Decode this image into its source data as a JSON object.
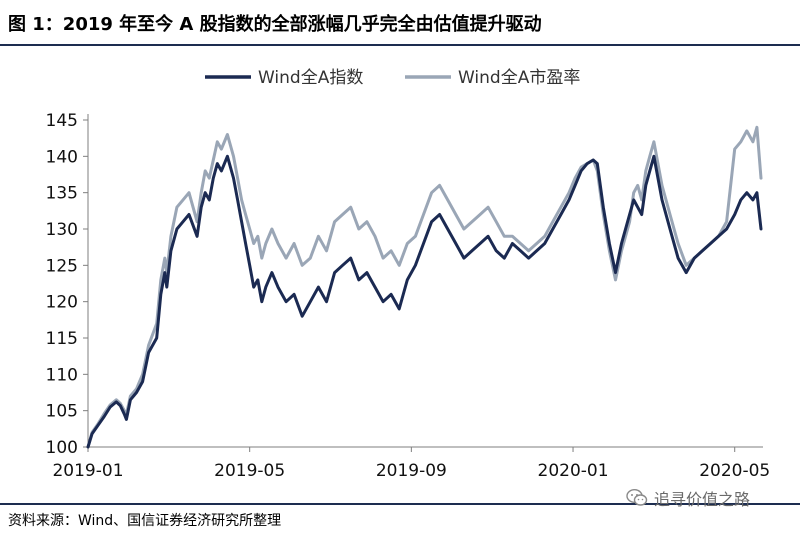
{
  "header": {
    "title": "图 1：2019 年至今 A 股指数的全部涨幅几乎完全由估值提升驱动"
  },
  "footer": {
    "source": "资料来源：Wind、国信证券经济研究所整理",
    "watermark": "追寻价值之路"
  },
  "colors": {
    "index_series": "#1b2a52",
    "pe_series": "#9aa6b6",
    "axis": "#7f7f7f",
    "rule": "#1d2d50"
  },
  "chart_data": {
    "type": "line",
    "title": "",
    "xlabel": "",
    "ylabel": "",
    "ylim": [
      100,
      145
    ],
    "yticks": [
      100,
      105,
      110,
      115,
      120,
      125,
      130,
      135,
      140,
      145
    ],
    "xlim": [
      0,
      16.7
    ],
    "xtick_labels": [
      "2019-01",
      "2019-05",
      "2019-09",
      "2020-01",
      "2020-05"
    ],
    "xtick_positions": [
      0,
      4,
      8,
      12,
      16
    ],
    "legend_position": "top-center",
    "series": [
      {
        "name": "Wind全A指数",
        "color": "#1b2a52",
        "x": [
          0,
          0.1,
          0.25,
          0.4,
          0.55,
          0.7,
          0.8,
          0.9,
          0.95,
          1.05,
          1.2,
          1.35,
          1.5,
          1.7,
          1.8,
          1.9,
          1.95,
          2.05,
          2.2,
          2.35,
          2.5,
          2.7,
          2.8,
          2.9,
          3.0,
          3.1,
          3.2,
          3.3,
          3.45,
          3.6,
          3.7,
          3.8,
          3.9,
          4.0,
          4.1,
          4.2,
          4.3,
          4.4,
          4.55,
          4.7,
          4.9,
          5.1,
          5.3,
          5.5,
          5.7,
          5.9,
          6.1,
          6.3,
          6.5,
          6.7,
          6.9,
          7.1,
          7.3,
          7.5,
          7.7,
          7.9,
          8.1,
          8.3,
          8.5,
          8.7,
          8.9,
          9.1,
          9.3,
          9.5,
          9.7,
          9.9,
          10.1,
          10.3,
          10.5,
          10.7,
          10.9,
          11.1,
          11.3,
          11.5,
          11.7,
          11.9,
          12.05,
          12.2,
          12.35,
          12.5,
          12.6,
          12.75,
          12.9,
          13.05,
          13.2,
          13.4,
          13.5,
          13.6,
          13.7,
          13.8,
          13.9,
          14.0,
          14.2,
          14.4,
          14.6,
          14.8,
          15.0,
          15.2,
          15.4,
          15.6,
          15.8,
          16.0,
          16.15,
          16.3,
          16.45,
          16.55,
          16.65
        ],
        "values": [
          100,
          101.8,
          103,
          104.2,
          105.5,
          106.2,
          105.7,
          104.5,
          103.8,
          106.5,
          107.5,
          109,
          113,
          115,
          121,
          124,
          122,
          127,
          130,
          131,
          132,
          129,
          133,
          135,
          134,
          137,
          139,
          138,
          140,
          137,
          134,
          131,
          128,
          125,
          122,
          123,
          120,
          122,
          124,
          122,
          120,
          121,
          118,
          120,
          122,
          120,
          124,
          125,
          126,
          123,
          124,
          122,
          120,
          121,
          119,
          123,
          125,
          128,
          131,
          132,
          130,
          128,
          126,
          127,
          128,
          129,
          127,
          126,
          128,
          127,
          126,
          127,
          128,
          130,
          132,
          134,
          136,
          138,
          139,
          139.5,
          139,
          133,
          128,
          124,
          128,
          132,
          134,
          133,
          132,
          136,
          138,
          140,
          134,
          130,
          126,
          124,
          126,
          127,
          128,
          129,
          130,
          132,
          134,
          135,
          134,
          135,
          130
        ]
      },
      {
        "name": "Wind全A市盈率",
        "color": "#9aa6b6",
        "x": [
          0,
          0.1,
          0.25,
          0.4,
          0.55,
          0.7,
          0.8,
          0.9,
          0.95,
          1.05,
          1.2,
          1.35,
          1.5,
          1.7,
          1.8,
          1.9,
          1.95,
          2.05,
          2.2,
          2.35,
          2.5,
          2.7,
          2.8,
          2.9,
          3.0,
          3.1,
          3.2,
          3.3,
          3.45,
          3.6,
          3.7,
          3.8,
          3.9,
          4.0,
          4.1,
          4.2,
          4.3,
          4.4,
          4.55,
          4.7,
          4.9,
          5.1,
          5.3,
          5.5,
          5.7,
          5.9,
          6.1,
          6.3,
          6.5,
          6.7,
          6.9,
          7.1,
          7.3,
          7.5,
          7.7,
          7.9,
          8.1,
          8.3,
          8.5,
          8.7,
          8.9,
          9.1,
          9.3,
          9.5,
          9.7,
          9.9,
          10.1,
          10.3,
          10.5,
          10.7,
          10.9,
          11.1,
          11.3,
          11.5,
          11.7,
          11.9,
          12.05,
          12.2,
          12.35,
          12.5,
          12.6,
          12.75,
          12.9,
          13.05,
          13.2,
          13.4,
          13.5,
          13.6,
          13.7,
          13.8,
          13.9,
          14.0,
          14.2,
          14.4,
          14.6,
          14.8,
          15.0,
          15.2,
          15.4,
          15.6,
          15.8,
          16.0,
          16.15,
          16.3,
          16.45,
          16.55,
          16.65
        ],
        "values": [
          100,
          102,
          103.2,
          104.6,
          105.8,
          106.5,
          106,
          105,
          104.5,
          107,
          108,
          110,
          114,
          117,
          123,
          126,
          124,
          129,
          133,
          134,
          135,
          131,
          135,
          138,
          137,
          139.5,
          142,
          141,
          143,
          140,
          137,
          134,
          132,
          130,
          128,
          129,
          126,
          128,
          130,
          128,
          126,
          128,
          125,
          126,
          129,
          127,
          131,
          132,
          133,
          130,
          131,
          129,
          126,
          127,
          125,
          128,
          129,
          132,
          135,
          136,
          134,
          132,
          130,
          131,
          132,
          133,
          131,
          129,
          129,
          128,
          127,
          128,
          129,
          131,
          133,
          135,
          137,
          138.5,
          139,
          139.5,
          138,
          132,
          127,
          123,
          127,
          131,
          135,
          136,
          134,
          138,
          140,
          142,
          136,
          132,
          128,
          125,
          126,
          127,
          128,
          129,
          131,
          141,
          142,
          143.5,
          142,
          144,
          137
        ]
      }
    ]
  }
}
